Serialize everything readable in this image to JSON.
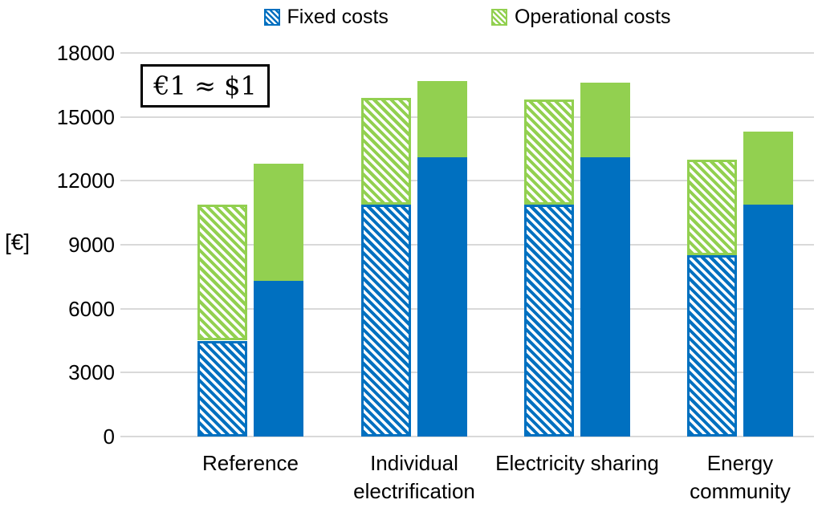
{
  "annotation": {
    "text": "€1 ≈ $1"
  },
  "colors": {
    "fixed": "#0070C0",
    "operational": "#92D050",
    "gridline": "#D9D9D9",
    "text": "#000000",
    "background": "#FFFFFF"
  },
  "chart_data": {
    "type": "bar",
    "stacked": true,
    "grid": true,
    "legend_position": "top",
    "title": "",
    "xlabel": "",
    "ylabel": "[€]",
    "ylim": [
      0,
      18000
    ],
    "ytick_step": 3000,
    "yticks": [
      0,
      3000,
      6000,
      9000,
      12000,
      15000,
      18000
    ],
    "legend": [
      "Fixed costs",
      "Operational costs"
    ],
    "series": [
      {
        "name": "Fixed costs",
        "color": "#0070C0"
      },
      {
        "name": "Operational costs",
        "color": "#92D050"
      }
    ],
    "bar_styles": [
      "hatched",
      "solid"
    ],
    "categories": [
      "Reference",
      "Individual electrification",
      "Electricity sharing",
      "Energy community"
    ],
    "groups": [
      {
        "category": "Reference",
        "bars": [
          {
            "style": "hatched",
            "fixed_costs": 4500,
            "operational_costs": 6400,
            "total": 10900
          },
          {
            "style": "solid",
            "fixed_costs": 7300,
            "operational_costs": 5500,
            "total": 12800
          }
        ]
      },
      {
        "category": "Individual electrification",
        "bars": [
          {
            "style": "hatched",
            "fixed_costs": 10900,
            "operational_costs": 5000,
            "total": 15900
          },
          {
            "style": "solid",
            "fixed_costs": 13100,
            "operational_costs": 3600,
            "total": 16700
          }
        ]
      },
      {
        "category": "Electricity sharing",
        "bars": [
          {
            "style": "hatched",
            "fixed_costs": 10900,
            "operational_costs": 4900,
            "total": 15800
          },
          {
            "style": "solid",
            "fixed_costs": 13100,
            "operational_costs": 3500,
            "total": 16600
          }
        ]
      },
      {
        "category": "Energy community",
        "bars": [
          {
            "style": "hatched",
            "fixed_costs": 8500,
            "operational_costs": 4500,
            "total": 13000
          },
          {
            "style": "solid",
            "fixed_costs": 10900,
            "operational_costs": 3400,
            "total": 14300
          }
        ]
      }
    ]
  }
}
